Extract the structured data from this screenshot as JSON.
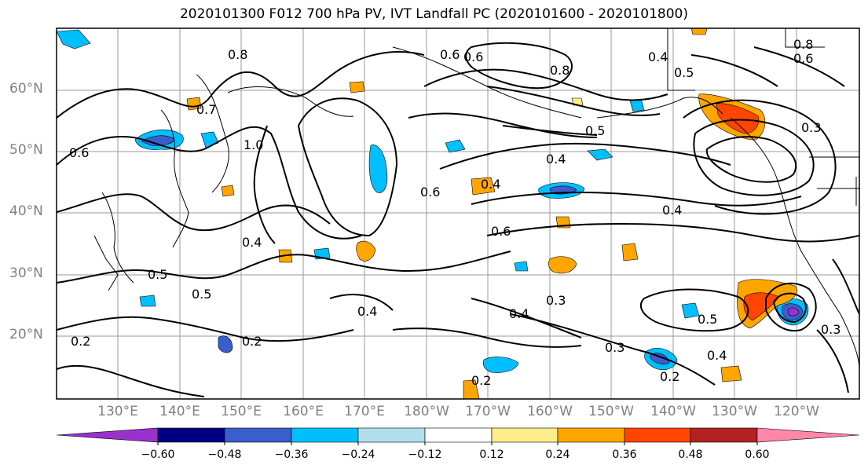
{
  "title": "2020101300 F012 700 hPa PV, IVT Landfall PC (2020101600 - 2020101800)",
  "lat_labels": [
    "60°N",
    "50°N",
    "40°N",
    "30°N",
    "20°N"
  ],
  "lon_labels": [
    "130°E",
    "140°E",
    "150°E",
    "160°E",
    "170°E",
    "180°W",
    "170°W",
    "160°W",
    "150°W",
    "140°W",
    "130°W",
    "120°W"
  ],
  "contour_labels": [
    "0.8",
    "0.6",
    "0.4",
    "0.6",
    "0.8",
    "0.5",
    "0.7",
    "1.0",
    "0.5",
    "0.6",
    "0.4",
    "0.4",
    "0.6",
    "0.4",
    "0.6",
    "0.4",
    "0.5",
    "0.5",
    "0.4",
    "0.3",
    "0.4",
    "0.2",
    "0.2",
    "0.3",
    "0.2",
    "0.2",
    "0.4",
    "0.5",
    "0.3",
    "0.8",
    "0.6",
    "0.3"
  ],
  "colorbar": {
    "ticks": [
      "−0.60",
      "−0.48",
      "−0.36",
      "−0.24",
      "−0.12",
      "0.12",
      "0.24",
      "0.36",
      "0.48",
      "0.60"
    ],
    "colors": [
      "#9932cc",
      "#000080",
      "#3a5fcd",
      "#00bfff",
      "#b2dfee",
      "#ffffff",
      "#ffec8b",
      "#ffa500",
      "#ff4500",
      "#b22222",
      "#ff88aa"
    ]
  }
}
